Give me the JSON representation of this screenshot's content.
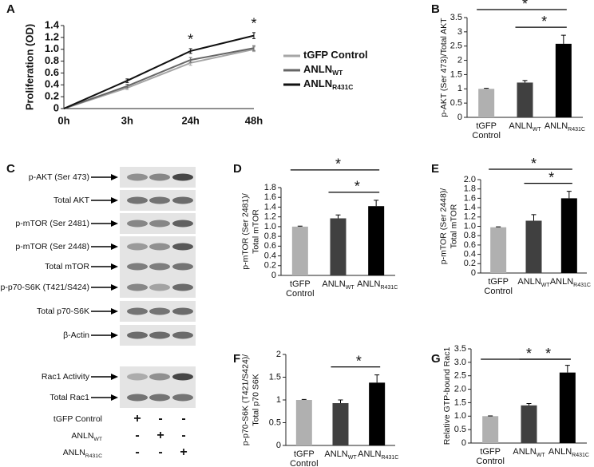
{
  "chart_data": [
    {
      "type": "line",
      "panel": "A",
      "y_label": [
        "Proliferation (OD)"
      ],
      "categories": [
        "0h",
        "3h",
        "24h",
        "48h"
      ],
      "series": [
        {
          "name": "tGFP Control",
          "color": "#a6a6a6",
          "values": [
            0,
            0.35,
            0.77,
            1.0
          ],
          "errors": [
            0,
            0.03,
            0.04,
            0.04
          ]
        },
        {
          "name": "ANLN",
          "subscript": "WT",
          "color": "#666666",
          "values": [
            0,
            0.38,
            0.82,
            1.02
          ],
          "errors": [
            0,
            0.03,
            0.04,
            0.04
          ]
        },
        {
          "name": "ANLN",
          "subscript": "R431C",
          "color": "#111111",
          "values": [
            0,
            0.47,
            0.97,
            1.23
          ],
          "errors": [
            0,
            0.03,
            0.04,
            0.05
          ]
        }
      ],
      "ylim": [
        0,
        1.4
      ],
      "yticks": [
        0,
        0.2,
        0.4,
        0.6,
        0.8,
        {
          "value": 1,
          "label": "1.0"
        },
        1.2,
        1.4
      ],
      "annotations": [
        {
          "label": "*",
          "category": 2,
          "series": 2
        },
        {
          "label": "*",
          "category": 3,
          "series": 2
        }
      ]
    },
    {
      "type": "bar",
      "panel": "B",
      "y_label": [
        "p-AKT (Ser 473)/Total AKT"
      ],
      "categories": [
        "tGFP Control",
        "ANLN",
        "ANLN"
      ],
      "category_subscripts": [
        null,
        "WT",
        "R431C"
      ],
      "values": [
        1.0,
        1.22,
        2.58
      ],
      "errors": [
        0.02,
        0.07,
        0.3
      ],
      "colors": [
        "#b0b0b0",
        "#404040",
        "#000000"
      ],
      "ylim": [
        0,
        3.5
      ],
      "yticks": [
        0,
        0.5,
        1,
        1.5,
        2,
        2.5,
        3,
        3.5
      ],
      "significance": [
        {
          "label": "*",
          "groups": [
            0,
            2
          ]
        },
        {
          "label": "*",
          "groups": [
            1,
            2
          ]
        }
      ]
    },
    {
      "type": "bar",
      "panel": "D",
      "y_label": [
        "p-mTOR (Ser 2481)/",
        "Total mTOR"
      ],
      "categories": [
        "tGFP Control",
        "ANLN",
        "ANLN"
      ],
      "category_subscripts": [
        null,
        "WT",
        "R431C"
      ],
      "values": [
        1.0,
        1.17,
        1.42
      ],
      "errors": [
        0.01,
        0.07,
        0.12
      ],
      "colors": [
        "#b0b0b0",
        "#404040",
        "#000000"
      ],
      "ylim": [
        0,
        1.8
      ],
      "yticks": [
        0,
        0.2,
        0.4,
        0.6,
        0.8,
        {
          "value": 1,
          "label": "1.0"
        },
        1.2,
        1.4,
        1.6,
        1.8
      ],
      "significance": [
        {
          "label": "*",
          "groups": [
            0,
            2
          ]
        },
        {
          "label": "*",
          "groups": [
            1,
            2
          ]
        }
      ]
    },
    {
      "type": "bar",
      "panel": "E",
      "y_label": [
        "p-mTOR (Ser 2448)/",
        "Total mTOR"
      ],
      "categories": [
        "tGFP Control",
        "ANLN",
        "ANLN"
      ],
      "category_subscripts": [
        null,
        "WT",
        "R431C"
      ],
      "values": [
        0.98,
        1.12,
        1.6
      ],
      "errors": [
        0.01,
        0.13,
        0.15
      ],
      "colors": [
        "#b0b0b0",
        "#404040",
        "#000000"
      ],
      "ylim": [
        0,
        2
      ],
      "yticks": [
        0,
        0.2,
        0.4,
        0.6,
        0.8,
        {
          "value": 1,
          "label": "1.0"
        },
        1.2,
        1.4,
        1.6,
        1.8,
        {
          "value": 2,
          "label": "2.0"
        }
      ],
      "significance": [
        {
          "label": "*",
          "groups": [
            0,
            2
          ]
        },
        {
          "label": "*",
          "groups": [
            1,
            2
          ]
        }
      ]
    },
    {
      "type": "bar",
      "panel": "F",
      "y_label": [
        "p-p70-S6K (T421/S424)/",
        "Total p70 S6K"
      ],
      "categories": [
        "tGFP Control",
        "ANLN",
        "ANLN"
      ],
      "category_subscripts": [
        null,
        "WT",
        "R431C"
      ],
      "values": [
        1.0,
        0.93,
        1.38
      ],
      "errors": [
        0.01,
        0.07,
        0.17
      ],
      "colors": [
        "#b0b0b0",
        "#404040",
        "#000000"
      ],
      "ylim": [
        0,
        2
      ],
      "yticks": [
        0,
        0.5,
        1,
        1.5,
        2
      ],
      "significance": [
        {
          "label": "*",
          "groups": [
            1,
            2
          ]
        }
      ]
    },
    {
      "type": "bar",
      "panel": "G",
      "y_label": [
        "Relative GTP-bound Rac1"
      ],
      "categories": [
        "tGFP Control",
        "ANLN",
        "ANLN"
      ],
      "category_subscripts": [
        null,
        "WT",
        "R431C"
      ],
      "values": [
        1.0,
        1.4,
        2.62
      ],
      "errors": [
        0.01,
        0.07,
        0.27
      ],
      "colors": [
        "#b0b0b0",
        "#404040",
        "#000000"
      ],
      "ylim": [
        0,
        3.5
      ],
      "yticks": [
        0,
        0.5,
        {
          "value": 1,
          "label": "1.0"
        },
        1.5,
        {
          "value": 2,
          "label": "2.0"
        },
        2.5,
        {
          "value": 3,
          "label": "3.0"
        },
        3.5
      ],
      "significance": [
        {
          "label": "*",
          "groups": [
            0,
            2
          ]
        },
        {
          "label": "*",
          "groups": [
            1,
            2
          ]
        }
      ]
    }
  ],
  "blot": {
    "panel": "C",
    "rows": [
      "p-AKT (Ser 473)",
      "Total AKT",
      "p-mTOR (Ser 2481)",
      "p-mTOR (Ser 2448)",
      "Total mTOR",
      "p-p70-S6K (T421/S424)",
      "Total p70-S6K",
      "β-Actin",
      "Rac1 Activity",
      "Total Rac1"
    ],
    "conditions": [
      {
        "name": "tGFP Control",
        "marks": [
          "+",
          "-",
          "-"
        ]
      },
      {
        "name": "ANLN",
        "subscript": "WT",
        "marks": [
          "-",
          "+",
          "-"
        ]
      },
      {
        "name": "ANLN",
        "subscript": "R431C",
        "marks": [
          "-",
          "-",
          "+"
        ]
      }
    ]
  }
}
